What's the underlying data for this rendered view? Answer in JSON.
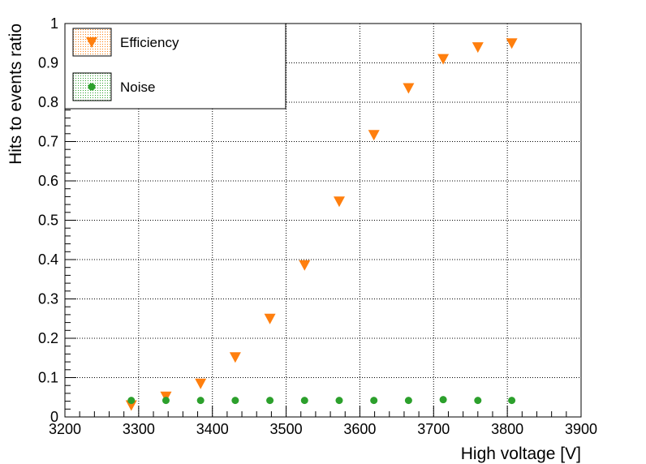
{
  "chart_data": {
    "type": "scatter",
    "xlabel": "High voltage [V]",
    "ylabel": "Hits to events ratio",
    "xlim": [
      3200,
      3900
    ],
    "ylim": [
      0,
      1
    ],
    "x_ticks": [
      3200,
      3300,
      3400,
      3500,
      3600,
      3700,
      3800,
      3900
    ],
    "y_ticks": [
      0,
      0.1,
      0.2,
      0.3,
      0.4,
      0.5,
      0.6,
      0.7,
      0.8,
      0.9,
      1
    ],
    "grid": true,
    "legend_position": "top-left",
    "series": [
      {
        "name": "Efficiency",
        "marker": "triangle-down",
        "color": "#ff7f0e",
        "x": [
          3290,
          3337,
          3384,
          3431,
          3478,
          3525,
          3572,
          3619,
          3666,
          3713,
          3760,
          3806
        ],
        "y": [
          0.03,
          0.052,
          0.085,
          0.152,
          0.25,
          0.386,
          0.548,
          0.717,
          0.836,
          0.91,
          0.94,
          0.95
        ]
      },
      {
        "name": "Noise",
        "marker": "circle",
        "color": "#2ca02c",
        "x": [
          3290,
          3337,
          3384,
          3431,
          3478,
          3525,
          3572,
          3619,
          3666,
          3713,
          3760,
          3806
        ],
        "y": [
          0.042,
          0.042,
          0.042,
          0.042,
          0.042,
          0.042,
          0.042,
          0.042,
          0.042,
          0.044,
          0.042,
          0.042
        ]
      }
    ]
  }
}
